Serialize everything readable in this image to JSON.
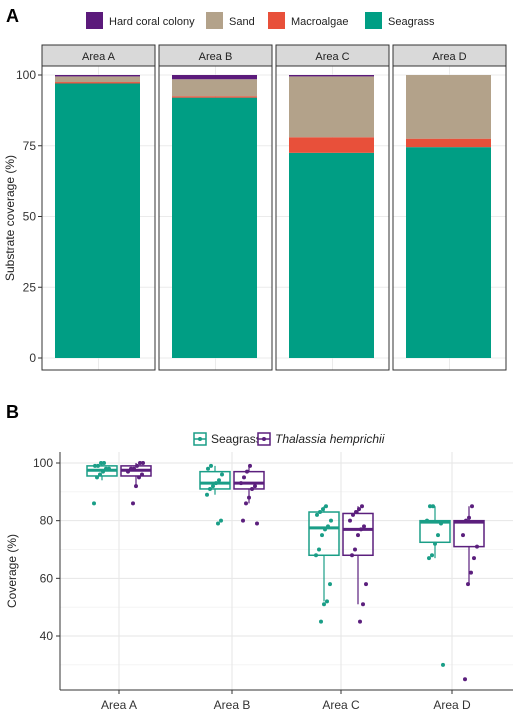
{
  "chart_data": [
    {
      "panel_label": "A",
      "type": "bar",
      "stacked": true,
      "legend_position": "top",
      "categories": [
        "Area A",
        "Area B",
        "Area C",
        "Area D"
      ],
      "series": [
        {
          "name": "Hard coral colony",
          "color": "#5b1a7b",
          "values": [
            0.5,
            1.5,
            0.5,
            0
          ]
        },
        {
          "name": "Sand",
          "color": "#b3a28a",
          "values": [
            2,
            6,
            21.5,
            22.5
          ]
        },
        {
          "name": "Macroalgae",
          "color": "#e8503a",
          "values": [
            0.5,
            0.5,
            5.5,
            3
          ]
        },
        {
          "name": "Seagrass",
          "color": "#009e84",
          "values": [
            97,
            92,
            72.5,
            74.5
          ]
        }
      ],
      "ylabel": "Substrate coverage (%)",
      "yticks": [
        0,
        25,
        50,
        75,
        100
      ],
      "ylim": [
        0,
        100
      ],
      "grid": true
    },
    {
      "panel_label": "B",
      "type": "box",
      "legend_position": "top",
      "categories": [
        "Area A",
        "Area B",
        "Area C",
        "Area D"
      ],
      "ylabel": "Coverage (%)",
      "yticks": [
        40,
        60,
        80,
        100
      ],
      "ylim": [
        25,
        102
      ],
      "grid": true,
      "series": [
        {
          "name": "Seagrass",
          "italic": false,
          "color": "#1a9e87",
          "boxes": [
            {
              "whisker_low": 94,
              "q1": 95.5,
              "median": 97.5,
              "q3": 99,
              "whisker_high": 100
            },
            {
              "whisker_low": 89,
              "q1": 91,
              "median": 93,
              "q3": 97,
              "whisker_high": 99
            },
            {
              "whisker_low": 52,
              "q1": 68,
              "median": 77.5,
              "q3": 83,
              "whisker_high": 85
            },
            {
              "whisker_low": 67,
              "q1": 72.5,
              "median": 79.5,
              "q3": 80,
              "whisker_high": 85
            }
          ],
          "points": [
            [
              86,
              95,
              96,
              97,
              98,
              98,
              99,
              99,
              100,
              100
            ],
            [
              79,
              80,
              89,
              91,
              92,
              93,
              94,
              96,
              98,
              99
            ],
            [
              45,
              51,
              52,
              58,
              68,
              70,
              75,
              77,
              78,
              80,
              82,
              83,
              84,
              85
            ],
            [
              30,
              67,
              68,
              72,
              75,
              79,
              80,
              85,
              85
            ]
          ]
        },
        {
          "name": "Thalassia hemprichii",
          "italic": true,
          "color": "#5b1f7d",
          "boxes": [
            {
              "whisker_low": 92,
              "q1": 95.5,
              "median": 97.5,
              "q3": 99,
              "whisker_high": 100
            },
            {
              "whisker_low": 86,
              "q1": 91,
              "median": 93,
              "q3": 97,
              "whisker_high": 99
            },
            {
              "whisker_low": 51,
              "q1": 68,
              "median": 77,
              "q3": 82.5,
              "whisker_high": 85
            },
            {
              "whisker_low": 58,
              "q1": 71,
              "median": 79.5,
              "q3": 80,
              "whisker_high": 85
            }
          ],
          "points": [
            [
              86,
              92,
              95,
              96,
              97,
              98,
              98,
              99,
              100,
              100
            ],
            [
              79,
              80,
              86,
              88,
              91,
              92,
              93,
              95,
              97,
              99
            ],
            [
              45,
              51,
              58,
              68,
              70,
              75,
              77,
              78,
              80,
              82,
              83,
              84,
              85
            ],
            [
              25,
              58,
              62,
              67,
              71,
              75,
              80,
              81,
              85
            ]
          ]
        }
      ]
    }
  ]
}
